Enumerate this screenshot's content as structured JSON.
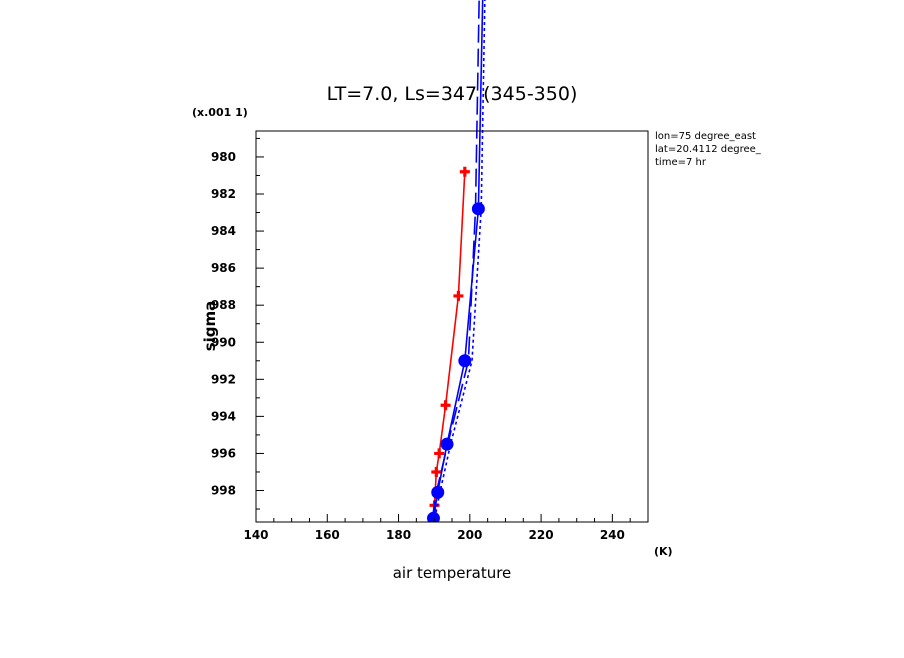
{
  "chart_data": {
    "type": "line",
    "title": "LT=7.0, Ls=347 (345-350)",
    "xlabel": "air temperature",
    "x_unit": "(K)",
    "ylabel": "sigma",
    "y_scale_note": "(x.001 1)",
    "annotations": [
      "lon=75 degree_east",
      "lat=20.4112 degree_",
      "time=7 hr"
    ],
    "xlim": [
      140,
      250
    ],
    "ylim": [
      999.7,
      978.6
    ],
    "x_ticks": [
      140,
      160,
      180,
      200,
      220,
      240
    ],
    "y_ticks": [
      980,
      982,
      984,
      986,
      988,
      990,
      992,
      994,
      996,
      998
    ],
    "grid": false,
    "series": [
      {
        "color": "#ff0000",
        "style": "solid",
        "marker": "plus",
        "x": [
          189.8,
          190.1,
          190.6,
          191.4,
          193.2,
          196.8,
          198.6
        ],
        "y": [
          999.6,
          998.8,
          997.0,
          996.0,
          993.4,
          987.5,
          980.8
        ]
      },
      {
        "color": "#0000ff",
        "style": "solid",
        "marker": "circle",
        "x": [
          189.8,
          191.0,
          193.6,
          198.6,
          202.4,
          204.5
        ],
        "y": [
          999.5,
          998.1,
          995.5,
          991.0,
          982.8,
          963.0
        ]
      },
      {
        "color": "#0000ff",
        "style": "dash",
        "marker": "none",
        "x": [
          189.5,
          190.6,
          193.8,
          199.6,
          201.6,
          203.4
        ],
        "y": [
          999.5,
          998.1,
          995.5,
          991.0,
          982.8,
          963.0
        ]
      },
      {
        "color": "#0000ff",
        "style": "dot",
        "marker": "none",
        "x": [
          190.2,
          191.6,
          194.6,
          200.6,
          203.2,
          205.0
        ],
        "y": [
          999.5,
          998.1,
          995.5,
          991.0,
          982.8,
          963.0
        ]
      }
    ]
  }
}
